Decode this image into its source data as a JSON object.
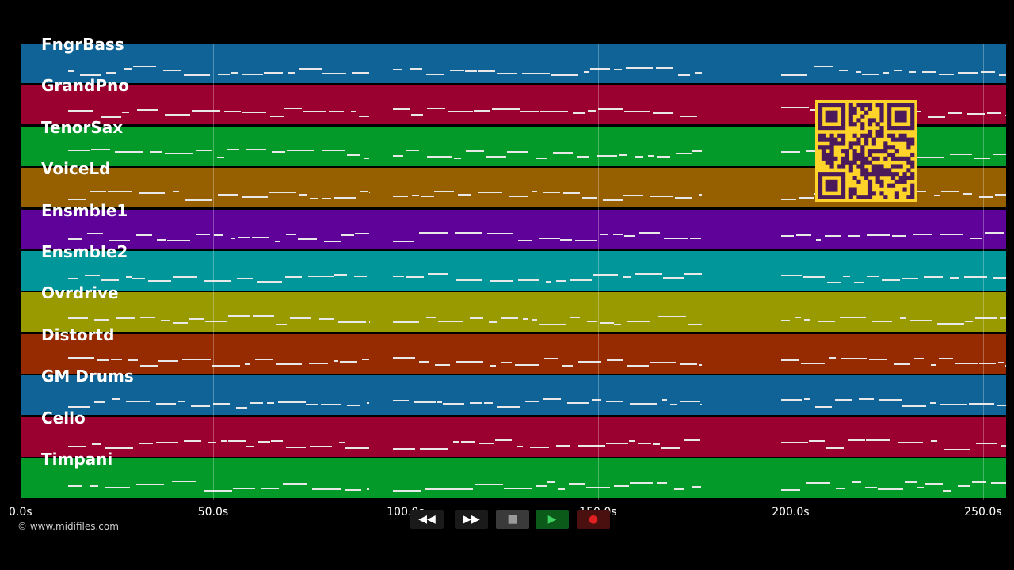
{
  "tracks": [
    {
      "name": "FngrBass",
      "color": "#0f6396"
    },
    {
      "name": "GrandPno",
      "color": "#9a0130"
    },
    {
      "name": "TenorSax",
      "color": "#049a2a"
    },
    {
      "name": "VoiceLd",
      "color": "#966000"
    },
    {
      "name": "Ensmble1",
      "color": "#5f0299"
    },
    {
      "name": "Ensmble2",
      "color": "#00969a"
    },
    {
      "name": "Ovrdrive",
      "color": "#999900"
    },
    {
      "name": "Distortd",
      "color": "#962a00"
    },
    {
      "name": "GM Drums",
      "color": "#0f6396"
    },
    {
      "name": "Cello",
      "color": "#9a0130"
    },
    {
      "name": "Timpani",
      "color": "#049a2a"
    }
  ],
  "timeline": {
    "ticks": [
      "0.0s",
      "50.0s",
      "100.0s",
      "150.0s",
      "200.0s",
      "250.0s"
    ],
    "tick_values": [
      0,
      50,
      100,
      150,
      200,
      250
    ],
    "max_seconds": 256
  },
  "copyright": "© www.midifiles.com",
  "controls": [
    {
      "name": "rewind-button",
      "icon": "rewind-icon",
      "glyph": "◀◀",
      "bg": "#1a1a1a",
      "fg": "#ffffff"
    },
    {
      "name": "fast-forward-button",
      "icon": "fast-forward-icon",
      "glyph": "▶▶",
      "bg": "#1a1a1a",
      "fg": "#ffffff"
    },
    {
      "name": "stop-button",
      "icon": "stop-icon",
      "glyph": "■",
      "bg": "#3a3a3a",
      "fg": "#9a9a9a"
    },
    {
      "name": "play-button",
      "icon": "play-icon",
      "glyph": "▶",
      "bg": "#0b5a1a",
      "fg": "#3fd060"
    },
    {
      "name": "record-button",
      "icon": "record-icon",
      "glyph": "●",
      "bg": "#4a1010",
      "fg": "#e02020"
    }
  ],
  "qr_code": {
    "bg": "#ffd42a",
    "fg": "#4a1a5a"
  }
}
